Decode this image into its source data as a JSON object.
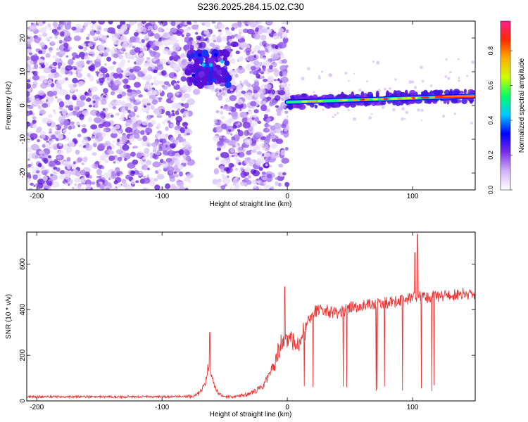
{
  "title": "S236.2025.284.15.02.C30",
  "chart_data": [
    {
      "type": "heatmap",
      "xlabel": "Height of straight line (km)",
      "ylabel": "Frequency (Hz)",
      "xlim": [
        -208,
        150
      ],
      "ylim": [
        -25,
        25
      ],
      "xticks": [
        -200,
        -100,
        0,
        100
      ],
      "yticks": [
        -20,
        -10,
        0,
        10,
        20
      ],
      "colorbar": {
        "label": "Normalized spectral amplitude",
        "range": [
          0,
          0.97
        ],
        "ticks": [
          0.0,
          0.2,
          0.4,
          0.6,
          0.8
        ],
        "colors": [
          "#ffffff",
          "#d2b4f8",
          "#7a2ee6",
          "#0000ff",
          "#00c8ff",
          "#00ff66",
          "#ccff00",
          "#ffb000",
          "#ff2a00",
          "#ff1e8c"
        ]
      },
      "features": [
        {
          "name": "noise",
          "x": [
            -208,
            0
          ],
          "freq": [
            -25,
            25
          ]
        },
        {
          "name": "cluster",
          "x": [
            -80,
            -45
          ],
          "freq": [
            6,
            16
          ]
        },
        {
          "name": "signal_band",
          "x": [
            0,
            150
          ],
          "freq_start": 1,
          "freq_end": 2.8
        }
      ]
    },
    {
      "type": "line",
      "xlabel": "Height of straight line (km)",
      "ylabel": "SNR (10 * v/v)",
      "xlim": [
        -208,
        150
      ],
      "ylim": [
        0,
        740
      ],
      "xticks": [
        -200,
        -100,
        0,
        100
      ],
      "yticks": [
        0,
        200,
        400,
        600
      ],
      "color": "#ee3333",
      "profile": [
        [
          -208,
          18
        ],
        [
          -100,
          18
        ],
        [
          -75,
          20
        ],
        [
          -70,
          35
        ],
        [
          -66,
          70
        ],
        [
          -64,
          130
        ],
        [
          -62,
          160
        ],
        [
          -60,
          90
        ],
        [
          -55,
          30
        ],
        [
          -50,
          15
        ],
        [
          -40,
          20
        ],
        [
          -30,
          30
        ],
        [
          -20,
          60
        ],
        [
          -10,
          160
        ],
        [
          -5,
          260
        ],
        [
          0,
          280
        ],
        [
          5,
          270
        ],
        [
          10,
          250
        ],
        [
          15,
          330
        ],
        [
          20,
          390
        ],
        [
          30,
          400
        ],
        [
          40,
          380
        ],
        [
          50,
          410
        ],
        [
          60,
          420
        ],
        [
          70,
          420
        ],
        [
          80,
          430
        ],
        [
          90,
          440
        ],
        [
          100,
          450
        ],
        [
          110,
          455
        ],
        [
          120,
          460
        ],
        [
          130,
          465
        ],
        [
          140,
          470
        ],
        [
          150,
          470
        ]
      ],
      "peaks": [
        [
          -62,
          300
        ],
        [
          -2,
          500
        ],
        [
          104,
          730
        ],
        [
          102,
          650
        ]
      ]
    }
  ]
}
